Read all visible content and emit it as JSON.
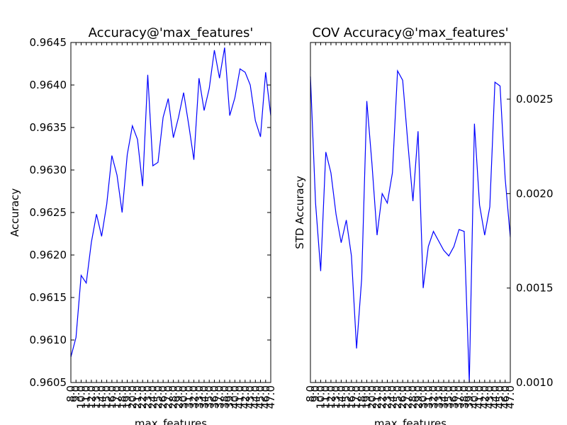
{
  "chart_data": [
    {
      "type": "line",
      "title": "Accuracy@'max_features'",
      "xlabel": "max_features",
      "ylabel": "Accuracy",
      "ylim": [
        0.9605,
        0.9645
      ],
      "yticks": [
        "0.9605",
        "0.9610",
        "0.9615",
        "0.9620",
        "0.9625",
        "0.9630",
        "0.9635",
        "0.9640",
        "0.9645"
      ],
      "ytick_side": "left",
      "xticks": [
        "8.0",
        "9.0",
        "10.0",
        "11.0",
        "12.0",
        "13.0",
        "14.0",
        "15.0",
        "16.0",
        "17.0",
        "18.0",
        "19.0",
        "20.0",
        "21.0",
        "22.0",
        "23.0",
        "24.0",
        "25.0",
        "26.0",
        "27.0",
        "28.0",
        "29.0",
        "30.0",
        "31.0",
        "32.0",
        "33.0",
        "34.0",
        "35.0",
        "36.0",
        "37.0",
        "38.0",
        "39.0",
        "40.0",
        "41.0",
        "42.0",
        "43.0",
        "44.0",
        "45.0",
        "46.0",
        "47.0"
      ],
      "grid": false,
      "color": "#0000ff",
      "series": [
        {
          "x": [
            8,
            9,
            10,
            11,
            12,
            13,
            14,
            15,
            16,
            17,
            18,
            19,
            20,
            21,
            22,
            23,
            24,
            25,
            26,
            27,
            28,
            29,
            30,
            31,
            32,
            33,
            34,
            35,
            36,
            37,
            38,
            39,
            40,
            41,
            42,
            43,
            44,
            45,
            46,
            47
          ],
          "values": [
            0.9608,
            0.96103,
            0.96176,
            0.96167,
            0.96215,
            0.96248,
            0.96222,
            0.9626,
            0.96317,
            0.96294,
            0.9625,
            0.96318,
            0.96352,
            0.96336,
            0.96281,
            0.96412,
            0.96305,
            0.96309,
            0.96362,
            0.96384,
            0.96338,
            0.96362,
            0.96391,
            0.96353,
            0.96312,
            0.96408,
            0.9637,
            0.96396,
            0.96441,
            0.96408,
            0.96444,
            0.96364,
            0.96385,
            0.96419,
            0.96415,
            0.964,
            0.96358,
            0.96339,
            0.96415,
            0.96364
          ]
        }
      ]
    },
    {
      "type": "line",
      "title": "COV Accuracy@'max_features'",
      "xlabel": "max_features",
      "ylabel": "STD Accuracy",
      "ylim": [
        0.001,
        0.0028
      ],
      "yticks": [
        "0.0010",
        "0.0015",
        "0.0020",
        "0.0025"
      ],
      "ytick_values": [
        0.001,
        0.0015,
        0.002,
        0.0025
      ],
      "ytick_side": "right",
      "xticks": [
        "8.0",
        "9.0",
        "10.0",
        "11.0",
        "12.0",
        "13.0",
        "14.0",
        "15.0",
        "16.0",
        "17.0",
        "18.0",
        "19.0",
        "20.0",
        "21.0",
        "22.0",
        "23.0",
        "24.0",
        "25.0",
        "26.0",
        "27.0",
        "28.0",
        "29.0",
        "30.0",
        "31.0",
        "32.0",
        "33.0",
        "34.0",
        "35.0",
        "36.0",
        "37.0",
        "38.0",
        "39.0",
        "40.0",
        "41.0",
        "42.0",
        "43.0",
        "44.0",
        "45.0",
        "46.0",
        "47.0"
      ],
      "grid": false,
      "color": "#0000ff",
      "series": [
        {
          "x": [
            8,
            9,
            10,
            11,
            12,
            13,
            14,
            15,
            16,
            17,
            18,
            19,
            20,
            21,
            22,
            23,
            24,
            25,
            26,
            27,
            28,
            29,
            30,
            31,
            32,
            33,
            34,
            35,
            36,
            37,
            38,
            39,
            40,
            41,
            42,
            43,
            44,
            45,
            46,
            47
          ],
          "values": [
            0.00262,
            0.00195,
            0.00159,
            0.00222,
            0.00211,
            0.00189,
            0.00174,
            0.00186,
            0.00167,
            0.00118,
            0.00155,
            0.00249,
            0.00216,
            0.00178,
            0.002,
            0.00195,
            0.00211,
            0.00265,
            0.0026,
            0.00227,
            0.00196,
            0.00233,
            0.0015,
            0.00172,
            0.0018,
            0.00175,
            0.0017,
            0.00167,
            0.00172,
            0.00181,
            0.0018,
            0.001,
            0.00237,
            0.00194,
            0.00178,
            0.00193,
            0.00259,
            0.00257,
            0.00208,
            0.00177
          ]
        }
      ]
    }
  ]
}
